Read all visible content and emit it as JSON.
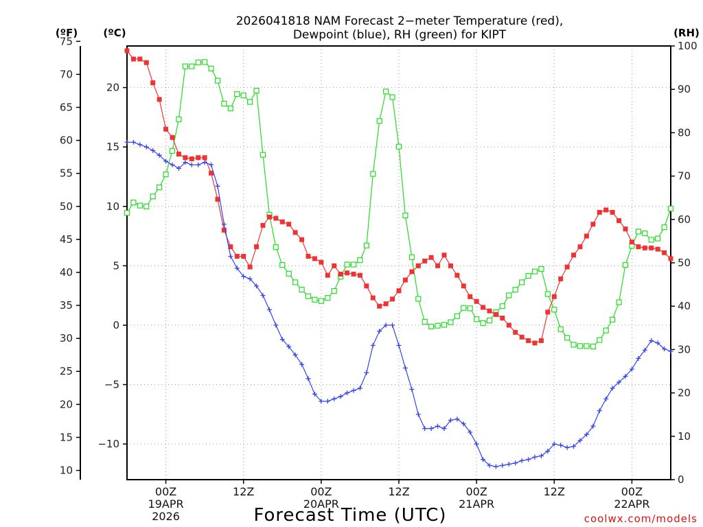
{
  "chart_data": {
    "type": "line",
    "title_line1": "2026041818 NAM Forecast 2−meter Temperature (red),",
    "title_line2": "Dewpoint (blue), RH (green) for KIPT",
    "xlabel": "Forecast Time (UTC)",
    "credit": "coolwx.com/models",
    "units": {
      "f": "(ºF)",
      "c": "(ºC)",
      "rh": "(RH)"
    },
    "x_hours_range": [
      0,
      84
    ],
    "x_ticks": [
      {
        "h": 6,
        "lines": [
          "00Z",
          "19APR",
          "2026"
        ]
      },
      {
        "h": 18,
        "lines": [
          "12Z"
        ]
      },
      {
        "h": 30,
        "lines": [
          "00Z",
          "20APR"
        ]
      },
      {
        "h": 42,
        "lines": [
          "12Z"
        ]
      },
      {
        "h": 54,
        "lines": [
          "00Z",
          "21APR"
        ]
      },
      {
        "h": 66,
        "lines": [
          "12Z"
        ]
      },
      {
        "h": 78,
        "lines": [
          "00Z",
          "22APR"
        ]
      }
    ],
    "celsius_axis": {
      "ylim": [
        -13,
        23.5
      ],
      "ticks": [
        "20",
        "15",
        "10",
        "5",
        "0",
        "−5",
        "−10"
      ]
    },
    "fahrenheit_axis": {
      "ticks": [
        "75",
        "70",
        "65",
        "60",
        "55",
        "50",
        "45",
        "40",
        "35",
        "30",
        "25",
        "20",
        "15",
        "10"
      ]
    },
    "rh_axis": {
      "ylim": [
        0,
        100
      ],
      "ticks": [
        "100",
        "90",
        "80",
        "70",
        "60",
        "50",
        "40",
        "30",
        "20",
        "10",
        "0"
      ]
    },
    "series": [
      {
        "name": "Temperature",
        "axis": "celsius",
        "color": "#ee3333",
        "marker": "filled-square",
        "x_hours": [
          0,
          1,
          2,
          3,
          4,
          5,
          6,
          7,
          8,
          9,
          10,
          11,
          12,
          13,
          14,
          15,
          16,
          17,
          18,
          19,
          20,
          21,
          22,
          23,
          24,
          25,
          26,
          27,
          28,
          29,
          30,
          31,
          32,
          33,
          34,
          35,
          36,
          37,
          38,
          39,
          40,
          41,
          42,
          43,
          44,
          45,
          46,
          47,
          48,
          49,
          50,
          51,
          52,
          53,
          54,
          55,
          56,
          57,
          58,
          59,
          60,
          61,
          62,
          63,
          64,
          65,
          66,
          67,
          68,
          69,
          70,
          71,
          72,
          73,
          74,
          75,
          76,
          77,
          78,
          79,
          80,
          81,
          82,
          83,
          84
        ],
        "values": [
          23.1,
          22.4,
          22.4,
          22.1,
          20.4,
          19.0,
          16.5,
          15.8,
          14.4,
          14.1,
          14.0,
          14.1,
          14.1,
          12.8,
          10.6,
          8.0,
          6.6,
          5.8,
          5.8,
          4.9,
          6.6,
          8.4,
          9.1,
          9.0,
          8.7,
          8.5,
          7.8,
          7.2,
          5.8,
          5.6,
          5.3,
          4.2,
          5.0,
          4.3,
          4.4,
          4.3,
          4.2,
          3.3,
          2.3,
          1.6,
          1.8,
          2.2,
          2.9,
          3.8,
          4.5,
          5.0,
          5.4,
          5.7,
          5.0,
          5.9,
          5.0,
          4.2,
          3.3,
          2.4,
          2.0,
          1.5,
          1.2,
          0.9,
          0.6,
          0.0,
          -0.6,
          -1.0,
          -1.3,
          -1.5,
          -1.3,
          1.1,
          2.4,
          3.9,
          4.9,
          5.9,
          6.6,
          7.5,
          8.5,
          9.5,
          9.7,
          9.5,
          8.8,
          8.1,
          7.0,
          6.6,
          6.5,
          6.5,
          6.4,
          6.1,
          5.6
        ]
      },
      {
        "name": "Dewpoint",
        "axis": "celsius",
        "color": "#3344ee",
        "marker": "plus",
        "x_hours": [
          0,
          1,
          2,
          3,
          4,
          5,
          6,
          7,
          8,
          9,
          10,
          11,
          12,
          13,
          14,
          15,
          16,
          17,
          18,
          19,
          20,
          21,
          22,
          23,
          24,
          25,
          26,
          27,
          28,
          29,
          30,
          31,
          32,
          33,
          34,
          35,
          36,
          37,
          38,
          39,
          40,
          41,
          42,
          43,
          44,
          45,
          46,
          47,
          48,
          49,
          50,
          51,
          52,
          53,
          54,
          55,
          56,
          57,
          58,
          59,
          60,
          61,
          62,
          63,
          64,
          65,
          66,
          67,
          68,
          69,
          70,
          71,
          72,
          73,
          74,
          75,
          76,
          77,
          78,
          79,
          80,
          81,
          82,
          83,
          84
        ],
        "values": [
          15.4,
          15.4,
          15.2,
          15.0,
          14.7,
          14.3,
          13.8,
          13.5,
          13.2,
          13.7,
          13.5,
          13.5,
          13.7,
          13.5,
          11.7,
          8.5,
          5.8,
          4.8,
          4.1,
          3.9,
          3.3,
          2.5,
          1.3,
          0.0,
          -1.2,
          -1.8,
          -2.5,
          -3.3,
          -4.5,
          -5.8,
          -6.4,
          -6.4,
          -6.2,
          -6.0,
          -5.7,
          -5.5,
          -5.3,
          -4.0,
          -1.7,
          -0.5,
          0.0,
          0.0,
          -1.7,
          -3.6,
          -5.4,
          -7.5,
          -8.7,
          -8.7,
          -8.5,
          -8.7,
          -8.0,
          -7.9,
          -8.3,
          -9.0,
          -10.0,
          -11.3,
          -11.8,
          -11.9,
          -11.8,
          -11.7,
          -11.6,
          -11.4,
          -11.3,
          -11.1,
          -11.0,
          -10.6,
          -10.0,
          -10.1,
          -10.3,
          -10.2,
          -9.7,
          -9.2,
          -8.5,
          -7.2,
          -6.2,
          -5.3,
          -4.8,
          -4.3,
          -3.7,
          -2.8,
          -2.1,
          -1.3,
          -1.5,
          -2.0,
          -2.2
        ]
      },
      {
        "name": "RH",
        "axis": "rh",
        "color": "#22dd22",
        "marker": "open-square",
        "x_hours": [
          0,
          1,
          2,
          3,
          4,
          5,
          6,
          7,
          8,
          9,
          10,
          11,
          12,
          13,
          14,
          15,
          16,
          17,
          18,
          19,
          20,
          21,
          22,
          23,
          24,
          25,
          26,
          27,
          28,
          29,
          30,
          31,
          32,
          33,
          34,
          35,
          36,
          37,
          38,
          39,
          40,
          41,
          42,
          43,
          44,
          45,
          46,
          47,
          48,
          49,
          50,
          51,
          52,
          53,
          54,
          55,
          56,
          57,
          58,
          59,
          60,
          61,
          62,
          63,
          64,
          65,
          66,
          67,
          68,
          69,
          70,
          71,
          72,
          73,
          74,
          75,
          76,
          77,
          78,
          79,
          80,
          81,
          82,
          83,
          84
        ],
        "values": [
          61.5,
          63.9,
          63.2,
          63.0,
          65.3,
          67.4,
          70.4,
          75.8,
          83.1,
          95.3,
          95.3,
          96.2,
          96.3,
          94.8,
          92.0,
          86.7,
          85.6,
          88.9,
          88.6,
          87.1,
          89.7,
          74.9,
          61.1,
          53.6,
          49.5,
          47.5,
          45.5,
          43.8,
          42.3,
          41.5,
          41.2,
          41.9,
          43.5,
          46.8,
          49.6,
          49.6,
          50.6,
          54.0,
          70.5,
          82.7,
          89.5,
          88.2,
          76.8,
          60.9,
          51.3,
          41.7,
          36.4,
          35.3,
          35.5,
          35.7,
          36.3,
          37.7,
          39.6,
          39.5,
          37.0,
          36.1,
          36.7,
          38.6,
          40.0,
          42.5,
          43.8,
          45.5,
          47.0,
          48.0,
          48.6,
          42.8,
          39.2,
          34.7,
          32.7,
          31.1,
          30.8,
          30.8,
          30.7,
          32.2,
          34.4,
          36.9,
          40.9,
          49.5,
          53.9,
          57.2,
          56.8,
          55.3,
          55.6,
          58.2,
          62.5
        ]
      }
    ]
  }
}
